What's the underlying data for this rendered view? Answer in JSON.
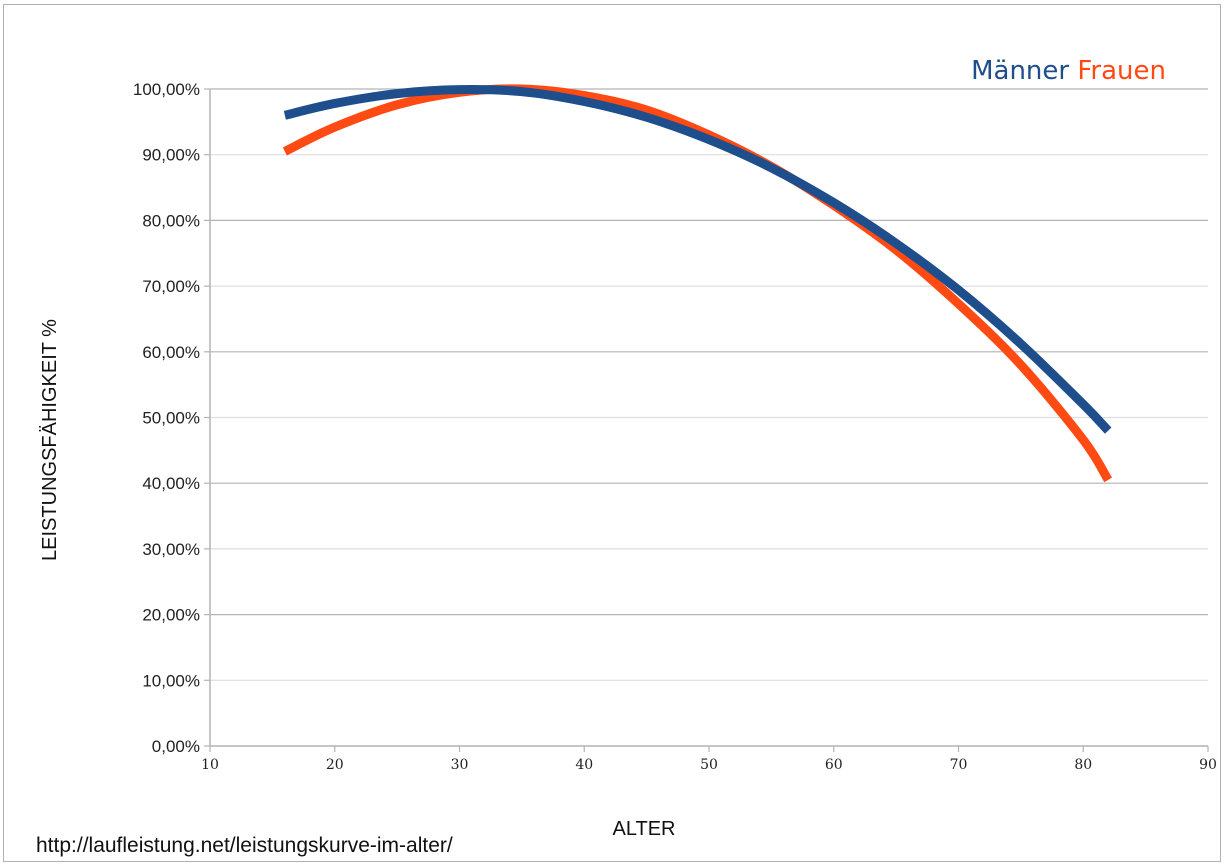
{
  "chart_data": {
    "type": "line",
    "title": "",
    "xlabel": "ALTER",
    "ylabel": "LEISTUNGSFÄHIGKEIT %",
    "xlim": [
      10,
      90
    ],
    "ylim": [
      0,
      100
    ],
    "x_ticks": [
      10,
      20,
      30,
      40,
      50,
      60,
      70,
      80,
      90
    ],
    "y_ticks": [
      0,
      10,
      20,
      30,
      40,
      50,
      60,
      70,
      80,
      90,
      100
    ],
    "y_tick_labels": [
      "0,00%",
      "10,00%",
      "20,00%",
      "30,00%",
      "40,00%",
      "50,00%",
      "60,00%",
      "70,00%",
      "80,00%",
      "90,00%",
      "100,00%"
    ],
    "grid": true,
    "legend_position": "top-right",
    "x": [
      16,
      20,
      25,
      30,
      35,
      40,
      45,
      50,
      55,
      60,
      65,
      70,
      75,
      80,
      82
    ],
    "series": [
      {
        "name": "Männer",
        "color": "#1f4e8c",
        "values": [
          96.0,
          97.8,
          99.3,
          99.9,
          99.6,
          98.1,
          95.7,
          92.3,
          88.0,
          82.7,
          76.5,
          69.4,
          61.2,
          52.0,
          48.0
        ]
      },
      {
        "name": "Frauen",
        "color": "#ff4a14",
        "values": [
          90.5,
          94.2,
          97.6,
          99.5,
          100.0,
          99.0,
          96.8,
          93.0,
          88.2,
          82.3,
          75.5,
          67.3,
          58.0,
          46.6,
          40.5
        ]
      }
    ]
  },
  "source_text": "http://laufleistung.net/leistungskurve-im-alter/"
}
